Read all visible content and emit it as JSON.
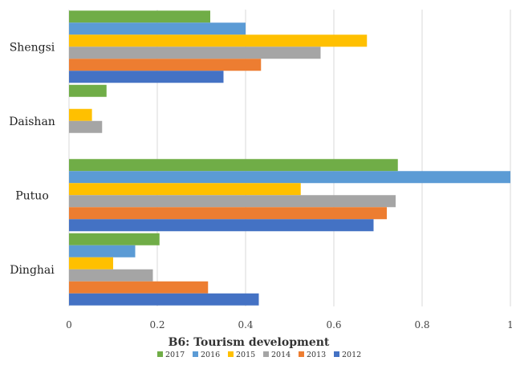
{
  "chart_data": {
    "type": "bar",
    "orientation": "horizontal",
    "title": "",
    "xlabel": "B6: Tourism development",
    "ylabel": "",
    "xlim": [
      0,
      1
    ],
    "xticks": [
      "0",
      "0.2",
      "0.4",
      "0.6",
      "0.8",
      "1"
    ],
    "grid": true,
    "legend_position": "bottom",
    "categories": [
      "Shengsi",
      "Daishan",
      "Putuo",
      "Dinghai"
    ],
    "series": [
      {
        "name": "2017",
        "color": "#70ad47",
        "values": [
          0.32,
          0.085,
          0.745,
          0.205
        ]
      },
      {
        "name": "2016",
        "color": "#5b9bd5",
        "values": [
          0.4,
          0.0,
          1.0,
          0.15
        ]
      },
      {
        "name": "2015",
        "color": "#ffc000",
        "values": [
          0.675,
          0.052,
          0.525,
          0.1
        ]
      },
      {
        "name": "2014",
        "color": "#a5a5a5",
        "values": [
          0.57,
          0.075,
          0.74,
          0.19
        ]
      },
      {
        "name": "2013",
        "color": "#ed7d31",
        "values": [
          0.435,
          0.0,
          0.72,
          0.315
        ]
      },
      {
        "name": "2012",
        "color": "#4472c4",
        "values": [
          0.35,
          0.0,
          0.69,
          0.43
        ]
      }
    ]
  }
}
